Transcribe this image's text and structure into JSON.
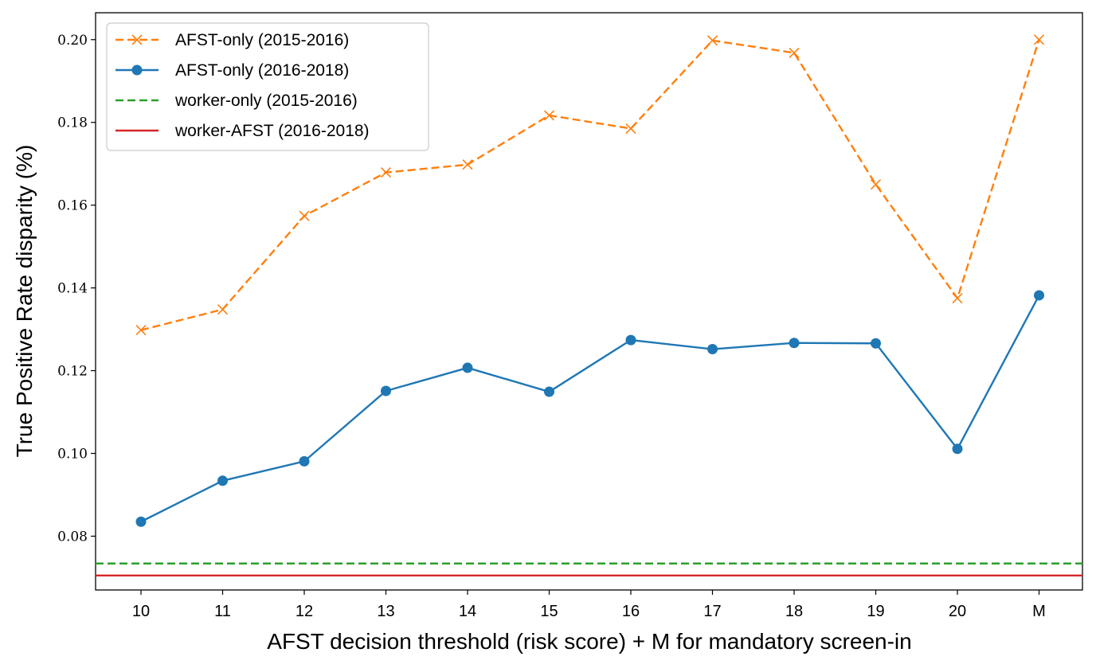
{
  "chart_data": {
    "type": "line",
    "title": "",
    "xlabel": "AFST decision threshold (risk score) + M for mandatory screen-in",
    "ylabel": "True Positive Rate disparity (%)",
    "categories": [
      "10",
      "11",
      "12",
      "13",
      "14",
      "15",
      "16",
      "17",
      "18",
      "19",
      "20",
      "M"
    ],
    "yticks": [
      "0.08",
      "0.10",
      "0.12",
      "0.14",
      "0.16",
      "0.18",
      "0.20"
    ],
    "ylim": [
      0.067,
      0.2065
    ],
    "grid": false,
    "legend_position": "top-left",
    "series": [
      {
        "name": "AFST-only (2015-2016)",
        "color": "#ff7f0e",
        "line_style": "dashed",
        "marker": "x",
        "values": [
          0.1298,
          0.1348,
          0.1574,
          0.1679,
          0.1698,
          0.1817,
          0.1785,
          0.1998,
          0.1968,
          0.165,
          0.1375,
          0.2
        ]
      },
      {
        "name": "AFST-only (2016-2018)",
        "color": "#1f77b4",
        "line_style": "solid",
        "marker": "circle",
        "values": [
          0.0835,
          0.0934,
          0.0981,
          0.1151,
          0.1207,
          0.1149,
          0.1274,
          0.1252,
          0.1267,
          0.1266,
          0.1011,
          0.1382
        ]
      },
      {
        "name": "worker-only (2015-2016)",
        "color": "#2ca02c",
        "line_style": "dashed",
        "marker": "none",
        "constant": 0.0734
      },
      {
        "name": "worker-AFST (2016-2018)",
        "color": "#d62728",
        "line_style": "solid",
        "marker": "none",
        "constant": 0.0705
      }
    ]
  }
}
